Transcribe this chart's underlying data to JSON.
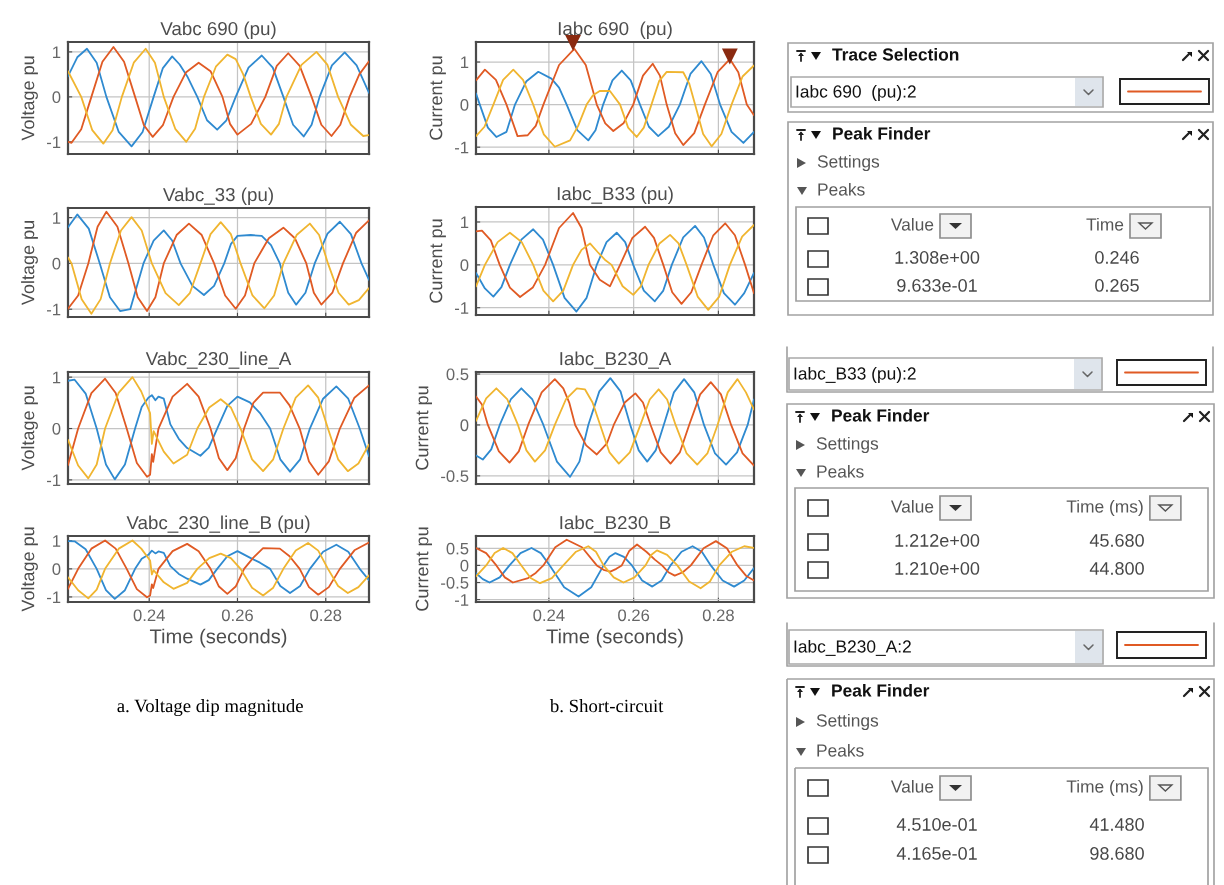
{
  "chart_data": [
    {
      "type": "line",
      "title": "Vabc 690 (pu)",
      "ylabel": "Voltage pu",
      "xlim": [
        0.2216,
        0.2898
      ],
      "ylim": [
        -1.27,
        1.22
      ],
      "xticks": [
        0.24,
        0.26,
        0.28
      ],
      "yticks": [
        -1,
        0,
        1
      ],
      "grid": true,
      "tick_labels": "y",
      "series": [
        {
          "color": "#2f8ad0",
          "x": [
            0.2216,
            0.2237,
            0.2259,
            0.2281,
            0.2303,
            0.2331,
            0.236,
            0.2385,
            0.241,
            0.2431,
            0.2452,
            0.2469,
            0.2486,
            0.2509,
            0.2531,
            0.2554,
            0.2575,
            0.2596,
            0.2625,
            0.2655,
            0.268,
            0.2704,
            0.2726,
            0.275,
            0.2768,
            0.2786,
            0.2814,
            0.2843,
            0.287,
            0.2898
          ],
          "values": [
            0.46,
            0.88,
            1.07,
            0.76,
            0,
            -0.78,
            -1.1,
            -0.78,
            0,
            0.64,
            0.9,
            0.72,
            0.46,
            0,
            -0.52,
            -0.73,
            -0.52,
            0,
            0.65,
            0.92,
            0.65,
            0,
            -0.62,
            -0.88,
            -0.62,
            0,
            0.7,
            0.99,
            0.7,
            0.09
          ]
        },
        {
          "color": "#e05a24",
          "x": [
            0.2216,
            0.2224,
            0.2246,
            0.2269,
            0.2294,
            0.2319,
            0.2343,
            0.2368,
            0.2388,
            0.2408,
            0.2431,
            0.2455,
            0.2483,
            0.2512,
            0.2539,
            0.2566,
            0.2583,
            0.26,
            0.2631,
            0.2663,
            0.2689,
            0.2715,
            0.2741,
            0.2768,
            0.279,
            0.2813,
            0.2833,
            0.2854,
            0.2876,
            0.2898
          ],
          "values": [
            -1.0,
            -1.02,
            -0.72,
            0,
            0.78,
            1.11,
            0.78,
            0,
            -0.63,
            -0.89,
            -0.63,
            0,
            0.54,
            0.76,
            0.57,
            0,
            -0.6,
            -0.84,
            -0.6,
            0,
            0.69,
            0.97,
            0.69,
            0,
            -0.62,
            -0.87,
            -0.62,
            0,
            0.5,
            0.79
          ]
        },
        {
          "color": "#f0b530",
          "x": [
            0.2216,
            0.2246,
            0.2271,
            0.2296,
            0.2317,
            0.2338,
            0.2365,
            0.2392,
            0.2413,
            0.2433,
            0.2459,
            0.2484,
            0.2504,
            0.2524,
            0.2551,
            0.2577,
            0.2596,
            0.2613,
            0.263,
            0.2653,
            0.2676,
            0.2694,
            0.2711,
            0.2745,
            0.2779,
            0.2804,
            0.2828,
            0.2857,
            0.2885,
            0.2898
          ],
          "values": [
            0.57,
            0,
            -0.74,
            -1.04,
            -0.74,
            0,
            0.76,
            1.07,
            0.76,
            0,
            -0.71,
            -1.0,
            -0.71,
            0,
            0.67,
            0.94,
            0.84,
            0.5,
            0,
            -0.6,
            -0.84,
            -0.6,
            0,
            0.71,
            1.0,
            0.71,
            0,
            -0.62,
            -0.87,
            -0.85
          ]
        }
      ]
    },
    {
      "type": "line",
      "title": "Vabc_33 (pu)",
      "ylabel": "Voltage pu",
      "xlim": [
        0.2216,
        0.2898
      ],
      "ylim": [
        -1.17,
        1.21
      ],
      "xticks": [
        0.24,
        0.26,
        0.28
      ],
      "yticks": [
        -1,
        0,
        1
      ],
      "grid": true,
      "tick_labels": "y",
      "series": [
        {
          "color": "#2f8ad0",
          "x": [
            0.2216,
            0.2237,
            0.2263,
            0.2288,
            0.2311,
            0.2334,
            0.2357,
            0.2387,
            0.241,
            0.2433,
            0.2452,
            0.2471,
            0.2498,
            0.2524,
            0.2547,
            0.257,
            0.2585,
            0.26,
            0.263,
            0.2655,
            0.2676,
            0.2696,
            0.2715,
            0.2733,
            0.2754,
            0.2775,
            0.2804,
            0.2832,
            0.2857,
            0.2881,
            0.2898
          ],
          "values": [
            0.79,
            1.07,
            0.76,
            0,
            -0.74,
            -1.04,
            -1.0,
            0,
            0.5,
            0.72,
            0.5,
            0,
            -0.49,
            -0.69,
            -0.49,
            0,
            0.42,
            0.6,
            0.62,
            0.6,
            0.4,
            0,
            -0.64,
            -0.9,
            -0.64,
            0,
            0.65,
            0.91,
            0.64,
            0,
            -0.36
          ]
        },
        {
          "color": "#e05a24",
          "x": [
            0.2216,
            0.2239,
            0.2262,
            0.2283,
            0.2303,
            0.2328,
            0.2353,
            0.2374,
            0.2395,
            0.2414,
            0.2433,
            0.2462,
            0.249,
            0.2519,
            0.2547,
            0.2572,
            0.2596,
            0.2617,
            0.2638,
            0.2671,
            0.2704,
            0.273,
            0.2756,
            0.2773,
            0.279,
            0.2815,
            0.2839,
            0.2869,
            0.2898
          ],
          "values": [
            -0.99,
            -0.7,
            0,
            0.8,
            1.13,
            0.8,
            0,
            -0.74,
            -1.04,
            -0.74,
            0,
            0.62,
            0.87,
            0.62,
            0,
            -0.7,
            -0.99,
            -0.7,
            0,
            0.55,
            0.78,
            0.55,
            0,
            -0.64,
            -0.9,
            -0.64,
            0,
            0.67,
            0.94
          ]
        },
        {
          "color": "#f0b530",
          "x": [
            0.2216,
            0.2224,
            0.2247,
            0.2269,
            0.229,
            0.2311,
            0.2336,
            0.236,
            0.2383,
            0.2406,
            0.2437,
            0.2467,
            0.2492,
            0.2516,
            0.2539,
            0.2562,
            0.2585,
            0.2607,
            0.2634,
            0.2661,
            0.2683,
            0.2704,
            0.2734,
            0.2764,
            0.2785,
            0.2805,
            0.2829,
            0.2852,
            0.2875,
            0.2898
          ],
          "values": [
            0.13,
            0,
            -0.78,
            -1.1,
            -0.78,
            0,
            0.72,
            1.01,
            0.72,
            0,
            -0.65,
            -0.91,
            -0.65,
            0,
            0.64,
            0.9,
            0.64,
            0,
            -0.7,
            -0.98,
            -0.7,
            0,
            0.62,
            0.87,
            0.62,
            0,
            -0.64,
            -0.9,
            -0.8,
            -0.54
          ]
        }
      ]
    },
    {
      "type": "line",
      "title": "Vabc_230_line_A",
      "ylabel": "Voltage pu",
      "xlim": [
        0.2216,
        0.2898
      ],
      "ylim": [
        -1.08,
        1.1
      ],
      "xticks": [
        0.24,
        0.26,
        0.28
      ],
      "yticks": [
        -1,
        0,
        1
      ],
      "grid": true,
      "tick_labels": "y",
      "series": [
        {
          "color": "#2f8ad0",
          "x": [
            0.2216,
            0.2231,
            0.2256,
            0.2281,
            0.2302,
            0.2322,
            0.2345,
            0.2368,
            0.2383,
            0.2398,
            0.2406,
            0.2414,
            0.2421,
            0.2433,
            0.2448,
            0.2467,
            0.2486,
            0.2516,
            0.2535,
            0.2554,
            0.2577,
            0.26,
            0.2628,
            0.2651,
            0.2674,
            0.2697,
            0.2719,
            0.2742,
            0.2764,
            0.2794,
            0.2824,
            0.2851,
            0.2877,
            0.2898
          ],
          "values": [
            0.93,
            0.95,
            0.68,
            0,
            -0.7,
            -0.99,
            -0.7,
            0,
            0.42,
            0.6,
            0.65,
            0.55,
            0.62,
            0.58,
            0.08,
            -0.2,
            -0.38,
            -0.53,
            -0.37,
            0,
            0.44,
            0.62,
            0.51,
            0.3,
            0,
            -0.6,
            -0.84,
            -0.6,
            0,
            0.58,
            0.82,
            0.58,
            0,
            -0.54
          ]
        },
        {
          "color": "#e05a24",
          "x": [
            0.2216,
            0.2239,
            0.2269,
            0.23,
            0.2324,
            0.2349,
            0.2372,
            0.2395,
            0.2402,
            0.2406,
            0.2409,
            0.2421,
            0.2453,
            0.2486,
            0.2512,
            0.2539,
            0.2558,
            0.2577,
            0.2596,
            0.2615,
            0.2636,
            0.2658,
            0.2696,
            0.2718,
            0.2741,
            0.2762,
            0.2783,
            0.2807,
            0.2832,
            0.2865,
            0.2898
          ],
          "values": [
            -0.71,
            0,
            0.69,
            0.97,
            0.69,
            0,
            -0.67,
            -0.94,
            -0.9,
            -0.5,
            -0.65,
            0,
            0.62,
            0.87,
            0.62,
            0,
            -0.58,
            -0.81,
            -0.58,
            0,
            0.5,
            0.7,
            0.7,
            0.45,
            0,
            -0.64,
            -0.9,
            -0.64,
            0,
            0.6,
            0.84
          ]
        },
        {
          "color": "#f0b530",
          "x": [
            0.2216,
            0.2239,
            0.2262,
            0.2281,
            0.23,
            0.2331,
            0.2362,
            0.2382,
            0.2402,
            0.2406,
            0.241,
            0.2433,
            0.2455,
            0.2486,
            0.2509,
            0.2536,
            0.2562,
            0.2585,
            0.2607,
            0.2633,
            0.2658,
            0.2681,
            0.2704,
            0.2732,
            0.276,
            0.2783,
            0.2805,
            0.2828,
            0.285,
            0.2874,
            0.2898
          ],
          "values": [
            -0.22,
            -0.72,
            -0.97,
            -0.7,
            0,
            0.7,
            1.0,
            0.72,
            0.3,
            -0.3,
            -0.05,
            -0.45,
            -0.68,
            -0.51,
            0,
            0.41,
            0.57,
            0.41,
            0,
            -0.6,
            -0.83,
            -0.6,
            0,
            0.6,
            0.84,
            0.6,
            0,
            -0.6,
            -0.83,
            -0.68,
            -0.31
          ]
        }
      ]
    },
    {
      "type": "line",
      "title": "Vabc_230_line_B (pu)",
      "ylabel": "Voltage pu",
      "xlabel": "Time (seconds)",
      "xlim": [
        0.2216,
        0.2898
      ],
      "ylim": [
        -1.18,
        1.17
      ],
      "xticks": [
        0.24,
        0.26,
        0.28
      ],
      "yticks": [
        -1,
        0,
        1
      ],
      "grid": true,
      "annotations": [
        "a. Voltage dip magnitude"
      ],
      "series": [
        {
          "color": "#2f8ad0",
          "x": [
            0.2216,
            0.2231,
            0.2256,
            0.2281,
            0.2302,
            0.2322,
            0.2345,
            0.2368,
            0.2383,
            0.2398,
            0.2406,
            0.2414,
            0.2421,
            0.2433,
            0.2448,
            0.2467,
            0.2486,
            0.2516,
            0.2535,
            0.2554,
            0.2577,
            0.26,
            0.2628,
            0.2651,
            0.2674,
            0.2697,
            0.2719,
            0.2742,
            0.2764,
            0.2794,
            0.2824,
            0.2851,
            0.2877,
            0.2898
          ],
          "values": [
            0.99,
            0.98,
            0.7,
            0,
            -0.76,
            -1.07,
            -0.76,
            0,
            0.36,
            0.5,
            0.65,
            0.55,
            0.62,
            0.57,
            0.1,
            -0.18,
            -0.35,
            -0.56,
            -0.4,
            0,
            0.45,
            0.63,
            0.4,
            0.22,
            0,
            -0.61,
            -0.86,
            -0.61,
            0,
            0.61,
            0.86,
            0.61,
            0,
            -0.4
          ]
        },
        {
          "color": "#e05a24",
          "x": [
            0.2216,
            0.2239,
            0.2269,
            0.23,
            0.2324,
            0.2349,
            0.2372,
            0.2395,
            0.2402,
            0.2406,
            0.2409,
            0.2421,
            0.2453,
            0.2486,
            0.2512,
            0.2539,
            0.2558,
            0.2577,
            0.2596,
            0.2615,
            0.2636,
            0.2658,
            0.2696,
            0.2718,
            0.2741,
            0.2762,
            0.2783,
            0.2807,
            0.2832,
            0.2865,
            0.2898
          ],
          "values": [
            -0.71,
            0,
            0.72,
            1.01,
            0.72,
            0,
            -0.72,
            -1.01,
            -0.95,
            -0.55,
            -0.68,
            0,
            0.63,
            0.89,
            0.63,
            0,
            -0.63,
            -0.89,
            -0.63,
            0,
            0.4,
            0.74,
            0.72,
            0.45,
            0,
            -0.65,
            -0.92,
            -0.65,
            0,
            0.66,
            0.94
          ]
        },
        {
          "color": "#f0b530",
          "x": [
            0.2216,
            0.2239,
            0.2262,
            0.2281,
            0.23,
            0.2331,
            0.2362,
            0.2382,
            0.2402,
            0.2406,
            0.241,
            0.2433,
            0.2455,
            0.2486,
            0.2509,
            0.2536,
            0.2562,
            0.2585,
            0.2607,
            0.2633,
            0.2658,
            0.2681,
            0.2704,
            0.2732,
            0.276,
            0.2783,
            0.2805,
            0.2828,
            0.285,
            0.2874,
            0.2898
          ],
          "values": [
            -0.3,
            -0.76,
            -1.05,
            -0.74,
            0,
            0.72,
            1.01,
            0.72,
            0.3,
            -0.2,
            -0.05,
            -0.48,
            -0.71,
            -0.5,
            0,
            0.38,
            0.54,
            0.38,
            0,
            -0.67,
            -0.95,
            -0.67,
            0,
            0.65,
            0.92,
            0.65,
            0,
            -0.61,
            -0.86,
            -0.65,
            -0.23
          ]
        }
      ]
    },
    {
      "type": "line",
      "title": "Iabc 690  (pu)",
      "ylabel": "Current pu",
      "xlim": [
        0.2228,
        0.2884
      ],
      "ylim": [
        -1.16,
        1.47
      ],
      "xticks": [
        0.24,
        0.26,
        0.28
      ],
      "yticks": [
        -1,
        0,
        1
      ],
      "grid": true,
      "tick_labels": "y",
      "series": [
        {
          "color": "#2f8ad0",
          "x": [
            0.2228,
            0.2237,
            0.2256,
            0.2276,
            0.23,
            0.232,
            0.2347,
            0.2375,
            0.2406,
            0.2424,
            0.2442,
            0.2467,
            0.2493,
            0.251,
            0.2528,
            0.255,
            0.2572,
            0.2593,
            0.2615,
            0.2636,
            0.2658,
            0.2683,
            0.2709,
            0.2734,
            0.276,
            0.2782,
            0.2804,
            0.2831,
            0.2859,
            0.2884
          ],
          "values": [
            0.26,
            0,
            -0.54,
            -0.76,
            -0.64,
            0,
            0.55,
            0.77,
            0.61,
            0.4,
            0,
            -0.6,
            -0.84,
            -0.6,
            0,
            0.57,
            0.8,
            0.57,
            0,
            -0.52,
            -0.74,
            -0.52,
            0,
            0.72,
            1.02,
            0.72,
            0,
            -0.64,
            -0.9,
            -0.64
          ]
        },
        {
          "color": "#e05a24",
          "x": [
            0.2228,
            0.2249,
            0.2275,
            0.23,
            0.2326,
            0.235,
            0.2369,
            0.2387,
            0.2424,
            0.246,
            0.2487,
            0.2513,
            0.2533,
            0.2552,
            0.2576,
            0.2599,
            0.2622,
            0.2645,
            0.2662,
            0.2678,
            0.2698,
            0.2717,
            0.2743,
            0.2768,
            0.2798,
            0.2827,
            0.2847,
            0.2867,
            0.2884
          ],
          "values": [
            0.57,
            0.82,
            0.58,
            0,
            -0.74,
            -0.72,
            -0.5,
            0,
            0.93,
            1.31,
            0.93,
            0,
            -0.44,
            -0.62,
            -0.44,
            0,
            0.68,
            0.96,
            0.68,
            0,
            -0.67,
            -0.95,
            -0.67,
            0,
            0.76,
            1.07,
            0.76,
            0,
            -0.25
          ]
        },
        {
          "color": "#f0b530",
          "x": [
            0.2228,
            0.2248,
            0.2269,
            0.2292,
            0.2316,
            0.2339,
            0.2363,
            0.2388,
            0.2414,
            0.245,
            0.2469,
            0.2489,
            0.2504,
            0.252,
            0.2544,
            0.2568,
            0.2587,
            0.2607,
            0.2624,
            0.2642,
            0.266,
            0.2678,
            0.2717,
            0.2731,
            0.2745,
            0.2764,
            0.2784,
            0.2807,
            0.2831,
            0.2857,
            0.2884
          ],
          "values": [
            -0.74,
            -0.52,
            0,
            0.58,
            0.82,
            0.58,
            0,
            -0.7,
            -0.99,
            -0.84,
            -0.5,
            0,
            0.22,
            0.32,
            0.32,
            0,
            -0.54,
            -0.76,
            -0.54,
            0,
            0.55,
            0.77,
            0.76,
            0.5,
            0,
            -0.69,
            -0.98,
            -0.69,
            0,
            0.66,
            0.92
          ]
        },
        {
          "type": "scatter",
          "marker": "triangle",
          "color": "#8a2a10",
          "x": [
            0.2457,
            0.2827
          ],
          "values": [
            1.45,
            1.13
          ]
        }
      ]
    },
    {
      "type": "line",
      "title": "Iabc_B33 (pu)",
      "ylabel": "Current pu",
      "xlim": [
        0.2228,
        0.2884
      ],
      "ylim": [
        -1.17,
        1.35
      ],
      "xticks": [
        0.24,
        0.26,
        0.28
      ],
      "yticks": [
        -1,
        0,
        1
      ],
      "grid": true,
      "tick_labels": "y",
      "series": [
        {
          "color": "#2f8ad0",
          "x": [
            0.2228,
            0.2249,
            0.2269,
            0.2288,
            0.2308,
            0.2335,
            0.2363,
            0.2386,
            0.241,
            0.2437,
            0.2465,
            0.2489,
            0.2513,
            0.2536,
            0.256,
            0.258,
            0.2599,
            0.2624,
            0.265,
            0.267,
            0.269,
            0.2717,
            0.2745,
            0.2766,
            0.2788,
            0.2813,
            0.2839,
            0.2861,
            0.2884
          ],
          "values": [
            -0.19,
            -0.55,
            -0.74,
            -0.52,
            0,
            0.59,
            0.83,
            0.59,
            0,
            -0.77,
            -1.09,
            -0.77,
            0,
            0.53,
            0.75,
            0.53,
            0,
            -0.6,
            -0.85,
            -0.6,
            0,
            0.64,
            0.91,
            0.64,
            0,
            -0.66,
            -0.93,
            -0.66,
            -0.19
          ]
        },
        {
          "color": "#e05a24",
          "x": [
            0.2228,
            0.2242,
            0.2263,
            0.2284,
            0.2308,
            0.2332,
            0.2362,
            0.2391,
            0.2424,
            0.2457,
            0.2477,
            0.2497,
            0.252,
            0.2544,
            0.2568,
            0.2597,
            0.2627,
            0.2648,
            0.267,
            0.2691,
            0.2713,
            0.2736,
            0.276,
            0.2788,
            0.2816,
            0.2839,
            0.2863,
            0.2884
          ],
          "values": [
            0.78,
            0.8,
            0.57,
            0,
            -0.53,
            -0.75,
            -0.53,
            0,
            0.86,
            1.21,
            0.86,
            0,
            -0.35,
            -0.5,
            0,
            0.63,
            0.89,
            0.63,
            0,
            -0.64,
            -0.91,
            -0.64,
            0,
            0.69,
            0.97,
            0.69,
            0,
            -0.66
          ]
        },
        {
          "color": "#f0b530",
          "x": [
            0.2228,
            0.2249,
            0.2279,
            0.2308,
            0.2336,
            0.2363,
            0.2387,
            0.241,
            0.2434,
            0.2457,
            0.2477,
            0.2497,
            0.2515,
            0.2532,
            0.2548,
            0.2574,
            0.2599,
            0.2617,
            0.2635,
            0.2661,
            0.2686,
            0.2706,
            0.2725,
            0.2751,
            0.2776,
            0.2802,
            0.2827,
            0.2856,
            0.2884
          ],
          "values": [
            -0.5,
            0,
            0.53,
            0.75,
            0.53,
            0,
            -0.6,
            -0.85,
            -0.6,
            0,
            0.35,
            0.5,
            0.3,
            0.12,
            0,
            -0.5,
            -0.7,
            -0.5,
            0,
            0.5,
            0.7,
            0.5,
            0,
            -0.74,
            -1.05,
            -0.74,
            0,
            0.66,
            0.93
          ]
        }
      ]
    },
    {
      "type": "line",
      "title": "Iabc_B230_A",
      "ylabel": "Current pu",
      "xlim": [
        0.2228,
        0.2884
      ],
      "ylim": [
        -0.58,
        0.52
      ],
      "xticks": [
        0.24,
        0.26,
        0.28
      ],
      "yticks": [
        -0.5,
        0,
        0.5
      ],
      "grid": true,
      "tick_labels": "y",
      "series": [
        {
          "color": "#2f8ad0",
          "x": [
            0.2228,
            0.2244,
            0.2264,
            0.2284,
            0.231,
            0.2335,
            0.2361,
            0.2387,
            0.2419,
            0.245,
            0.2472,
            0.2493,
            0.2519,
            0.2545,
            0.2569,
            0.2592,
            0.2612,
            0.2632,
            0.2652,
            0.2671,
            0.2695,
            0.2719,
            0.2743,
            0.2766,
            0.2792,
            0.2818,
            0.2844,
            0.2869,
            0.2884
          ],
          "values": [
            -0.3,
            -0.34,
            -0.24,
            0,
            0.25,
            0.36,
            0.25,
            0,
            -0.36,
            -0.51,
            -0.36,
            0,
            0.33,
            0.46,
            0.33,
            0,
            -0.25,
            -0.36,
            -0.25,
            0,
            0.32,
            0.45,
            0.32,
            0,
            -0.28,
            -0.39,
            -0.27,
            0,
            0.25
          ]
        },
        {
          "color": "#e05a24",
          "x": [
            0.2228,
            0.2242,
            0.2256,
            0.2282,
            0.2307,
            0.2329,
            0.2351,
            0.2383,
            0.2414,
            0.2434,
            0.2448,
            0.2462,
            0.2488,
            0.2513,
            0.2537,
            0.2553,
            0.2579,
            0.2604,
            0.2622,
            0.264,
            0.2664,
            0.2687,
            0.2709,
            0.2731,
            0.2757,
            0.2782,
            0.2806,
            0.283,
            0.2857,
            0.2884
          ],
          "values": [
            0.28,
            0.2,
            0,
            -0.26,
            -0.37,
            -0.26,
            0,
            0.32,
            0.45,
            0.36,
            0.22,
            0,
            -0.2,
            -0.29,
            -0.18,
            0,
            0.22,
            0.31,
            0.22,
            0,
            -0.27,
            -0.38,
            -0.27,
            0,
            0.3,
            0.42,
            0.3,
            0,
            -0.28,
            -0.4
          ]
        },
        {
          "color": "#f0b530",
          "x": [
            0.2228,
            0.2252,
            0.2276,
            0.2302,
            0.2327,
            0.2347,
            0.2367,
            0.2391,
            0.2414,
            0.244,
            0.2466,
            0.2485,
            0.2503,
            0.2521,
            0.2543,
            0.2565,
            0.2591,
            0.2616,
            0.2638,
            0.2659,
            0.2679,
            0.2699,
            0.2725,
            0.275,
            0.2774,
            0.2798,
            0.2822,
            0.2845,
            0.2865,
            0.2884
          ],
          "values": [
            0.04,
            0.26,
            0.36,
            0.25,
            0,
            -0.25,
            -0.36,
            -0.25,
            0,
            0.25,
            0.36,
            0.35,
            0.22,
            0,
            -0.27,
            -0.38,
            -0.27,
            0,
            0.25,
            0.35,
            0.25,
            0,
            -0.28,
            -0.39,
            -0.28,
            0,
            0.32,
            0.45,
            0.32,
            0.15
          ]
        }
      ]
    },
    {
      "type": "line",
      "title": "Iabc_B230_B",
      "ylabel": "Current pu",
      "xlabel": "Time (seconds)",
      "xlim": [
        0.2228,
        0.2884
      ],
      "ylim": [
        -1.07,
        0.86
      ],
      "xticks": [
        0.24,
        0.26,
        0.28
      ],
      "yticks": [
        -1,
        -0.5,
        0,
        0.5
      ],
      "grid": true,
      "annotations": [
        "b. Short-circuit"
      ],
      "series": [
        {
          "color": "#2f8ad0",
          "x": [
            0.2228,
            0.2244,
            0.226,
            0.2284,
            0.2307,
            0.2333,
            0.2359,
            0.2381,
            0.2402,
            0.2436,
            0.247,
            0.25,
            0.2529,
            0.2543,
            0.2557,
            0.2577,
            0.2596,
            0.262,
            0.2644,
            0.2666,
            0.2687,
            0.2713,
            0.2739,
            0.2761,
            0.2782,
            0.281,
            0.2837,
            0.2861,
            0.2884
          ],
          "values": [
            -0.23,
            -0.4,
            -0.5,
            -0.35,
            0,
            0.36,
            0.51,
            0.36,
            0,
            -0.64,
            -0.91,
            -0.64,
            0,
            0.25,
            0.36,
            0.25,
            0,
            -0.44,
            -0.62,
            -0.44,
            0,
            0.4,
            0.56,
            0.4,
            0,
            -0.44,
            -0.62,
            -0.44,
            -0.08
          ]
        },
        {
          "color": "#e05a24",
          "x": [
            0.2228,
            0.2252,
            0.2276,
            0.2296,
            0.2315,
            0.2351,
            0.2369,
            0.2387,
            0.2415,
            0.2442,
            0.2478,
            0.2513,
            0.2529,
            0.2545,
            0.2559,
            0.2572,
            0.259,
            0.2608,
            0.263,
            0.265,
            0.2667,
            0.2682,
            0.2697,
            0.2716,
            0.2735,
            0.2765,
            0.2794,
            0.282,
            0.2845,
            0.2865,
            0.2884
          ],
          "values": [
            0.51,
            0.36,
            0,
            -0.35,
            -0.5,
            -0.37,
            -0.22,
            0,
            0.53,
            0.75,
            0.53,
            0,
            -0.13,
            -0.18,
            -0.1,
            0,
            0.43,
            0.61,
            0.4,
            0.17,
            0,
            -0.2,
            -0.3,
            -0.2,
            0,
            0.5,
            0.71,
            0.5,
            0,
            -0.3,
            -0.44
          ]
        },
        {
          "color": "#f0b530",
          "x": [
            0.2228,
            0.2252,
            0.2272,
            0.2292,
            0.2314,
            0.2335,
            0.2357,
            0.2379,
            0.2407,
            0.2434,
            0.2464,
            0.2493,
            0.2511,
            0.2529,
            0.2553,
            0.2576,
            0.2602,
            0.2628,
            0.2642,
            0.2655,
            0.2679,
            0.2703,
            0.2731,
            0.2758,
            0.278,
            0.2802,
            0.2832,
            0.2861,
            0.2884
          ],
          "values": [
            -0.32,
            0,
            0.36,
            0.51,
            0.36,
            0,
            -0.37,
            -0.52,
            -0.37,
            0,
            0.4,
            0.56,
            0.4,
            0,
            -0.35,
            -0.5,
            -0.35,
            0,
            0.31,
            0.44,
            0.31,
            0,
            -0.47,
            -0.67,
            -0.47,
            0,
            0.4,
            0.56,
            0.51
          ]
        }
      ]
    },
    {
      "type": "other",
      "title": "Trace Selection",
      "annotations": [
        "Iabc 690  (pu):2"
      ],
      "color": "#e05a24"
    },
    {
      "type": "other",
      "title": "Peak Finder",
      "annotations": [
        "Settings",
        "Peaks",
        "Value",
        "Time",
        "1.308e+00",
        "0.246",
        "9.633e-01",
        "0.265"
      ]
    },
    {
      "type": "other",
      "annotations": [
        "Iabc_B33 (pu):2"
      ],
      "color": "#e05a24"
    },
    {
      "type": "other",
      "title": "Peak Finder",
      "annotations": [
        "Settings",
        "Peaks",
        "Value",
        "Time (ms)",
        "1.212e+00",
        "45.680",
        "1.210e+00",
        "44.800"
      ]
    },
    {
      "type": "other",
      "annotations": [
        "Iabc_B230_A:2"
      ],
      "color": "#e05a24"
    },
    {
      "type": "other",
      "title": "Peak Finder",
      "annotations": [
        "Settings",
        "Peaks",
        "Value",
        "Time (ms)",
        "4.510e-01",
        "41.480",
        "4.165e-01",
        "98.680"
      ]
    }
  ]
}
